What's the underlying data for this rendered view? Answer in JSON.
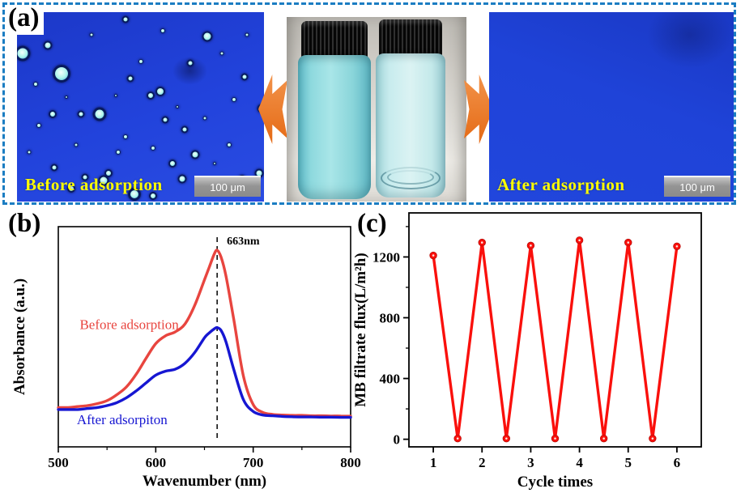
{
  "figure": {
    "panel_a_label": "(a)",
    "panel_b_label": "(b)",
    "panel_c_label": "(c)"
  },
  "panel_a": {
    "before_caption": "Before adsorption",
    "after_caption": "After adsorption",
    "scalebar_label": "100 μm",
    "border_color": "#1b7dc2",
    "arrow_color": "#e56a15",
    "caption_color": "#ffff00"
  },
  "chart_data": [
    {
      "id": "absorbance-spectra",
      "type": "line",
      "title": "",
      "xlabel": "Wavenumber (nm)",
      "ylabel": "Absorbance (a.u.)",
      "xlim": [
        500,
        800
      ],
      "ylim": [
        0,
        1.12
      ],
      "xticks": [
        500,
        600,
        700,
        800
      ],
      "xminor": [
        550,
        650,
        750
      ],
      "yticks": [],
      "grid": false,
      "legend": "inline-text-labels",
      "annotation": {
        "text": "663nm",
        "x": 663
      },
      "x": [
        500,
        510,
        520,
        530,
        540,
        550,
        560,
        570,
        580,
        590,
        600,
        610,
        620,
        630,
        640,
        650,
        655,
        660,
        663,
        667,
        672,
        680,
        690,
        700,
        710,
        720,
        730,
        740,
        750,
        760,
        770,
        780,
        790,
        800
      ],
      "series": [
        {
          "name": "Before adsorption",
          "color": "#e8453f",
          "label_x": 522,
          "label_v": 0.6,
          "values": [
            0.2,
            0.2,
            0.205,
            0.21,
            0.22,
            0.235,
            0.265,
            0.305,
            0.37,
            0.45,
            0.525,
            0.565,
            0.585,
            0.625,
            0.72,
            0.85,
            0.915,
            0.98,
            1.0,
            0.965,
            0.87,
            0.65,
            0.36,
            0.215,
            0.175,
            0.165,
            0.162,
            0.16,
            0.16,
            0.158,
            0.158,
            0.157,
            0.157,
            0.156
          ]
        },
        {
          "name": "After adsorpiton",
          "color": "#1616d2",
          "label_x": 519,
          "label_v": 0.115,
          "values": [
            0.19,
            0.19,
            0.19,
            0.195,
            0.2,
            0.21,
            0.225,
            0.25,
            0.285,
            0.325,
            0.365,
            0.385,
            0.395,
            0.425,
            0.48,
            0.555,
            0.58,
            0.6,
            0.607,
            0.592,
            0.535,
            0.395,
            0.24,
            0.18,
            0.162,
            0.158,
            0.155,
            0.153,
            0.152,
            0.152,
            0.151,
            0.151,
            0.15,
            0.15
          ]
        }
      ]
    },
    {
      "id": "mb-filtrate-flux",
      "type": "line-marker",
      "title": "",
      "xlabel": "Cycle times",
      "ylabel": "MB filtrate flux(L/m²h)",
      "xlim": [
        0.5,
        6.5
      ],
      "ylim": [
        -50,
        1490
      ],
      "xticks": [
        1,
        2,
        3,
        4,
        5,
        6
      ],
      "yticks": [
        0,
        400,
        800,
        1200
      ],
      "yminor": [
        200,
        600,
        1000,
        1400
      ],
      "grid": false,
      "color": "#fa100c",
      "x": [
        1,
        1.5,
        2,
        2.5,
        3,
        3.5,
        4,
        4.5,
        5,
        5.5,
        6
      ],
      "values": [
        1210,
        5,
        1295,
        5,
        1275,
        5,
        1310,
        5,
        1295,
        5,
        1270
      ]
    }
  ]
}
